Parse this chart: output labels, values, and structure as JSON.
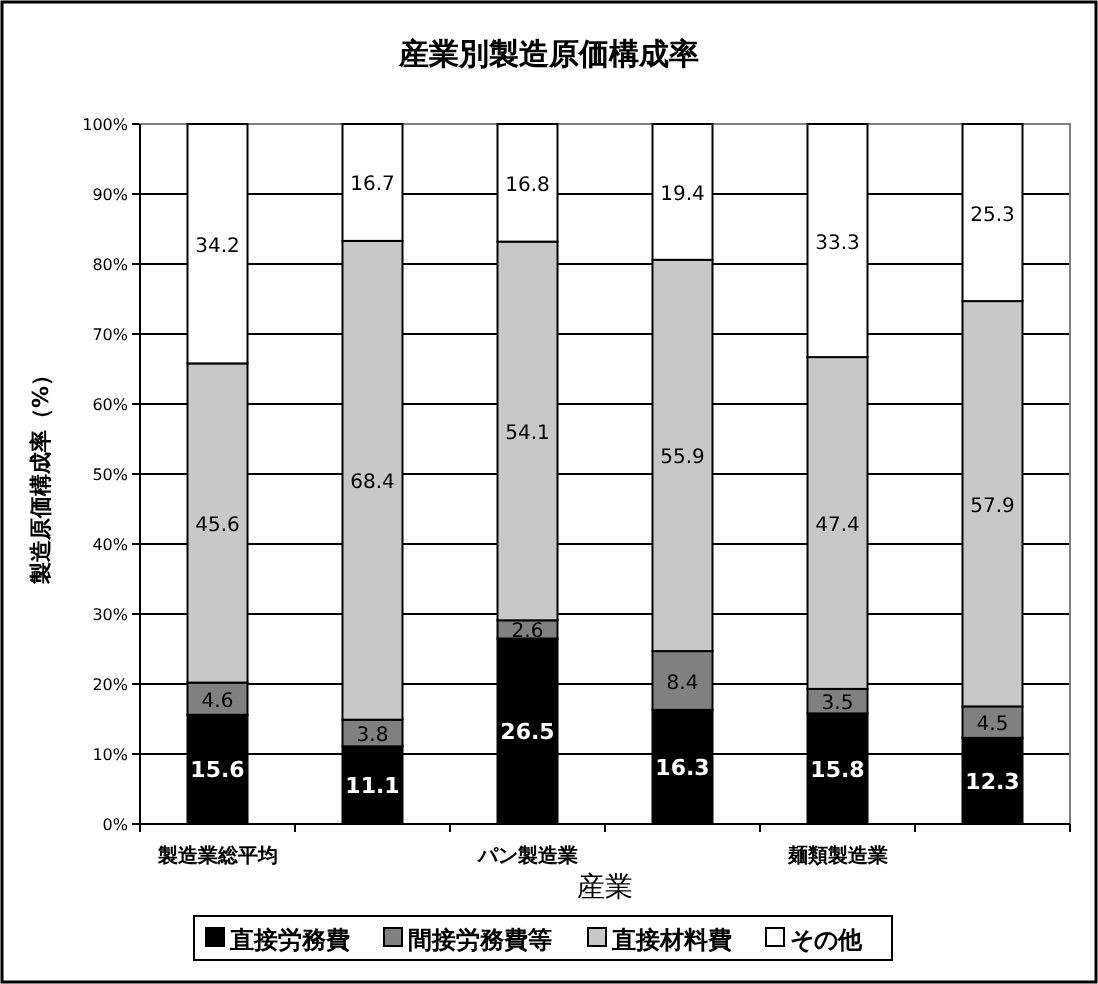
{
  "chart_data": {
    "type": "bar",
    "stacked": true,
    "title": "産業別製造原価構成率",
    "xlabel": "産業",
    "ylabel": "製造原価構成率（%）",
    "categories": [
      "製造業総平均",
      null,
      "パン製造業",
      null,
      "麺類製造業",
      null
    ],
    "series": [
      {
        "name": "直接労務費",
        "color": "#000000",
        "values": [
          15.6,
          11.1,
          26.5,
          16.3,
          15.8,
          12.3
        ]
      },
      {
        "name": "間接労務費等",
        "color": "#808080",
        "values": [
          4.6,
          3.8,
          2.6,
          8.4,
          3.5,
          4.5
        ]
      },
      {
        "name": "直接材料費",
        "color": "#c8c8c8",
        "values": [
          45.6,
          68.4,
          54.1,
          55.9,
          47.4,
          57.9
        ]
      },
      {
        "name": "その他",
        "color": "#ffffff",
        "values": [
          34.2,
          16.7,
          16.8,
          19.4,
          33.3,
          25.3
        ]
      }
    ],
    "ylim": [
      0,
      100
    ],
    "yticks": [
      {
        "value": 0,
        "label": "0%"
      },
      {
        "value": 10,
        "label": "10%"
      },
      {
        "value": 20,
        "label": "20%"
      },
      {
        "value": 30,
        "label": "30%"
      },
      {
        "value": 40,
        "label": "40%"
      },
      {
        "value": 50,
        "label": "50%"
      },
      {
        "value": 60,
        "label": "60%"
      },
      {
        "value": 70,
        "label": "70%"
      },
      {
        "value": 80,
        "label": "80%"
      },
      {
        "value": 90,
        "label": "90%"
      },
      {
        "value": 100,
        "label": "100%"
      }
    ],
    "grid": "y",
    "legend": "bottom",
    "data_labels": true
  }
}
